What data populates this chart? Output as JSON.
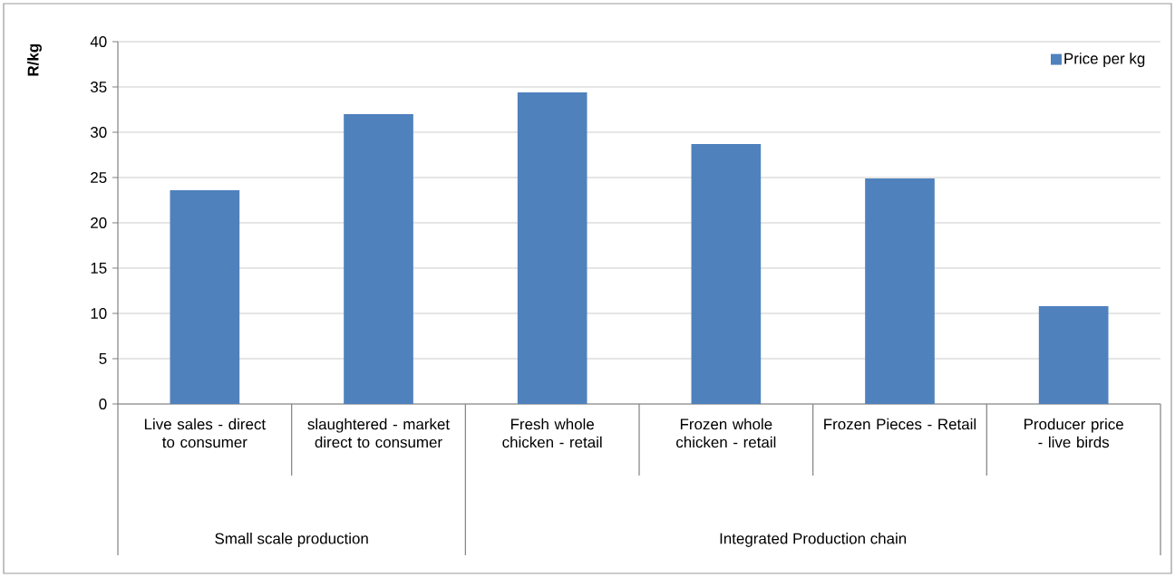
{
  "chart_data": {
    "type": "bar",
    "ylabel": "R/kg",
    "categories": [
      "Live sales - direct to consumer",
      "slaughtered - market direct to consumer",
      "Fresh whole chicken - retail",
      "Frozen whole chicken - retail",
      "Frozen Pieces - Retail",
      "Producer price - live birds"
    ],
    "series": [
      {
        "name": "Price per kg",
        "color": "#4f81bd",
        "values": [
          23.6,
          32.0,
          34.4,
          28.7,
          24.9,
          10.8
        ]
      }
    ],
    "annotations": [
      "Small scale production",
      "Integrated Production chain"
    ],
    "ylim": [
      0,
      40
    ],
    "yticks": [
      0,
      5,
      10,
      15,
      20,
      25,
      30,
      35,
      40
    ],
    "grid": "y",
    "legend": "top right"
  }
}
